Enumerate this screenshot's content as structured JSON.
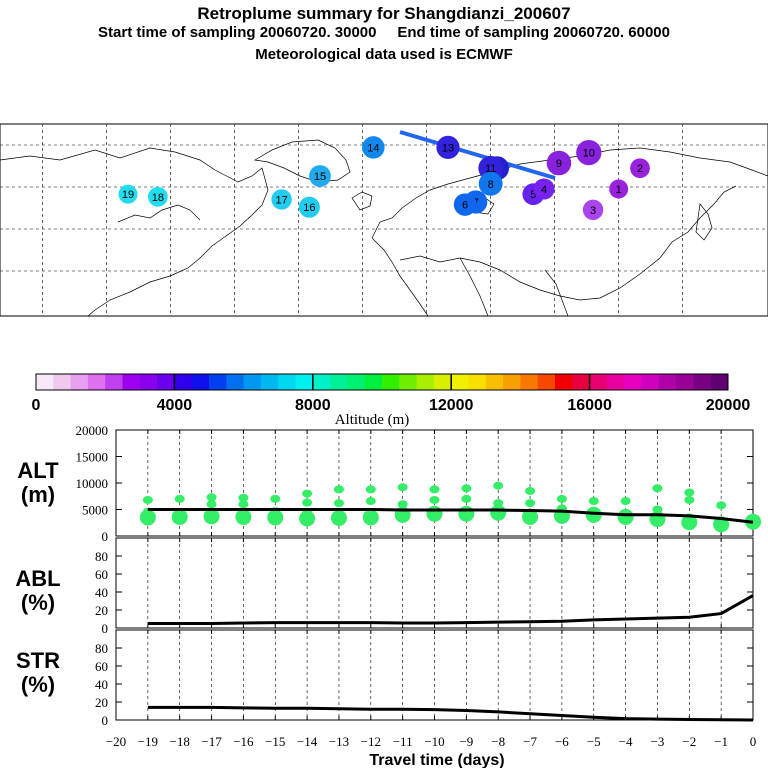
{
  "header": {
    "title": "Retroplume summary for Shangdianzi_200607",
    "start_label": "Start time of sampling 20060720. 30000",
    "end_label": "End time of sampling 20060720. 60000",
    "met_label": "Meteorological data used is ECMWF"
  },
  "map": {
    "plume_labels": [
      {
        "label": "19",
        "days": 19,
        "lon": -110,
        "lat": 48,
        "color": "#22ddee"
      },
      {
        "label": "18",
        "days": 18,
        "lon": -96,
        "lat": 47,
        "color": "#22ddee"
      },
      {
        "label": "17",
        "days": 17,
        "lon": -38,
        "lat": 46,
        "color": "#22ccee"
      },
      {
        "label": "16",
        "days": 16,
        "lon": -25,
        "lat": 43,
        "color": "#22ccee"
      },
      {
        "label": "15",
        "days": 15,
        "lon": -20,
        "lat": 55,
        "color": "#22aaee"
      },
      {
        "label": "14",
        "days": 14,
        "lon": 5,
        "lat": 66,
        "color": "#1188ee"
      },
      {
        "label": "13",
        "days": 13,
        "lon": 40,
        "lat": 66,
        "color": "#3322dd"
      },
      {
        "label": "12",
        "days": 12,
        "lon": 63,
        "lat": 58,
        "color": "#2222cc"
      },
      {
        "label": "11",
        "days": 11,
        "lon": 60,
        "lat": 58,
        "color": "#3322dd"
      },
      {
        "label": "10",
        "days": 10,
        "lon": 106,
        "lat": 64,
        "color": "#8822dd"
      },
      {
        "label": "9",
        "days": 9,
        "lon": 92,
        "lat": 60,
        "color": "#8822dd"
      },
      {
        "label": "8",
        "days": 8,
        "lon": 60,
        "lat": 52,
        "color": "#1177ee"
      },
      {
        "label": "7",
        "days": 7,
        "lon": 53,
        "lat": 45,
        "color": "#1166ee"
      },
      {
        "label": "6",
        "days": 6,
        "lon": 48,
        "lat": 44,
        "color": "#1166ee"
      },
      {
        "label": "5",
        "days": 5,
        "lon": 80,
        "lat": 48,
        "color": "#6622ee"
      },
      {
        "label": "4",
        "days": 4,
        "lon": 85,
        "lat": 50,
        "color": "#7722ee"
      },
      {
        "label": "3",
        "days": 3,
        "lon": 108,
        "lat": 42,
        "color": "#aa44ee"
      },
      {
        "label": "2",
        "days": 2,
        "lon": 130,
        "lat": 58,
        "color": "#9922dd"
      },
      {
        "label": "1",
        "days": 1,
        "lon": 120,
        "lat": 50,
        "color": "#9922dd"
      }
    ]
  },
  "colorbar": {
    "tick_labels": [
      "0",
      "4000",
      "8000",
      "12000",
      "16000",
      "20000"
    ],
    "label": "Altitude (m)",
    "colors": [
      "#f8e8f8",
      "#f0c8f0",
      "#e8a0f0",
      "#e070f0",
      "#c040f0",
      "#a000f0",
      "#8800ee",
      "#6a00ee",
      "#3000ee",
      "#1010ee",
      "#0040f0",
      "#0070f0",
      "#0098f0",
      "#00b8f0",
      "#00d8f0",
      "#00f0f0",
      "#00f0c8",
      "#00f098",
      "#00f070",
      "#00f040",
      "#30f000",
      "#70f000",
      "#a8f000",
      "#d8f000",
      "#f0f000",
      "#f8e000",
      "#f8c000",
      "#f8a000",
      "#f87800",
      "#f84800",
      "#f00000",
      "#e80040",
      "#e80070",
      "#e800a0",
      "#e800c0",
      "#d000c0",
      "#b000a8",
      "#980098",
      "#780080",
      "#600070"
    ]
  },
  "chart_data": [
    {
      "type": "line",
      "panel": "ALT",
      "ylabel": "ALT (m)",
      "ylim": [
        0,
        20000
      ],
      "yticks": [
        0,
        5000,
        10000,
        15000,
        20000
      ],
      "x": [
        -19,
        -18,
        -17,
        -16,
        -15,
        -14,
        -13,
        -12,
        -11,
        -10,
        -9,
        -8,
        -7,
        -6,
        -5,
        -4,
        -3,
        -2,
        -1,
        0
      ],
      "series": [
        {
          "name": "mean altitude",
          "values": [
            5000,
            5000,
            5000,
            5000,
            5000,
            5000,
            5000,
            5000,
            4900,
            4900,
            4900,
            4900,
            4800,
            4700,
            4300,
            4000,
            4000,
            3800,
            3300,
            2600
          ]
        }
      ],
      "clusters": [
        {
          "x": -19,
          "alts": [
            6800,
            4600,
            3500
          ]
        },
        {
          "x": -18,
          "alts": [
            7000,
            4500,
            3600
          ]
        },
        {
          "x": -17,
          "alts": [
            7300,
            6000,
            3700
          ]
        },
        {
          "x": -16,
          "alts": [
            7200,
            6000,
            3600
          ]
        },
        {
          "x": -15,
          "alts": [
            7000,
            4700,
            3500
          ]
        },
        {
          "x": -14,
          "alts": [
            8000,
            6300,
            4400,
            3300
          ]
        },
        {
          "x": -13,
          "alts": [
            8800,
            6200,
            4300,
            3400
          ]
        },
        {
          "x": -12,
          "alts": [
            8800,
            6600,
            4400,
            3500
          ]
        },
        {
          "x": -11,
          "alts": [
            9200,
            6000,
            4000
          ]
        },
        {
          "x": -10,
          "alts": [
            8800,
            6800,
            4200
          ]
        },
        {
          "x": -9,
          "alts": [
            9000,
            7000,
            4200
          ]
        },
        {
          "x": -8,
          "alts": [
            9500,
            6200,
            4400
          ]
        },
        {
          "x": -7,
          "alts": [
            8500,
            6200,
            3600
          ]
        },
        {
          "x": -6,
          "alts": [
            7000,
            5200,
            3800
          ]
        },
        {
          "x": -5,
          "alts": [
            6600,
            4000
          ]
        },
        {
          "x": -4,
          "alts": [
            6600,
            3600
          ]
        },
        {
          "x": -3,
          "alts": [
            9000,
            5000,
            3200
          ]
        },
        {
          "x": -2,
          "alts": [
            8200,
            6800,
            3500,
            2600
          ]
        },
        {
          "x": -1,
          "alts": [
            5800,
            3000,
            2200
          ]
        },
        {
          "x": 0,
          "alts": [
            2700
          ]
        }
      ]
    },
    {
      "type": "line",
      "panel": "ABL",
      "ylabel": "ABL (%)",
      "ylim": [
        0,
        100
      ],
      "yticks": [
        0,
        20,
        40,
        60,
        80
      ],
      "x": [
        -19,
        -18,
        -17,
        -16,
        -15,
        -14,
        -13,
        -12,
        -11,
        -10,
        -9,
        -8,
        -7,
        -6,
        -5,
        -4,
        -3,
        -2,
        -1,
        0
      ],
      "series": [
        {
          "name": "ABL fraction",
          "values": [
            5,
            5,
            5,
            5.5,
            6,
            6,
            6,
            6,
            5.5,
            5.5,
            6,
            6.5,
            7,
            7.5,
            9,
            10,
            11,
            12,
            16,
            36
          ]
        }
      ]
    },
    {
      "type": "line",
      "panel": "STR",
      "ylabel": "STR (%)",
      "ylim": [
        0,
        100
      ],
      "yticks": [
        0,
        20,
        40,
        60,
        80
      ],
      "x": [
        -19,
        -18,
        -17,
        -16,
        -15,
        -14,
        -13,
        -12,
        -11,
        -10,
        -9,
        -8,
        -7,
        -6,
        -5,
        -4,
        -3,
        -2,
        -1,
        0
      ],
      "series": [
        {
          "name": "stratospheric fraction",
          "values": [
            14,
            14,
            14,
            13.5,
            13,
            13,
            12.5,
            12,
            12,
            11.5,
            10.5,
            9,
            7,
            5,
            3,
            1.5,
            1,
            0.5,
            0.3,
            0
          ]
        }
      ]
    }
  ],
  "time_axis": {
    "ticks": [
      -20,
      -19,
      -18,
      -17,
      -16,
      -15,
      -14,
      -13,
      -12,
      -11,
      -10,
      -9,
      -8,
      -7,
      -6,
      -5,
      -4,
      -3,
      -2,
      -1,
      0
    ],
    "tick_labels": [
      "−20",
      "−19",
      "−18",
      "−17",
      "−16",
      "−15",
      "−14",
      "−13",
      "−12",
      "−11",
      "−10",
      "−9",
      "−8",
      "−7",
      "−6",
      "−5",
      "−4",
      "−3",
      "−2",
      "−1",
      "0"
    ],
    "label": "Travel time (days)"
  },
  "panel_labels": {
    "alt": [
      "ALT",
      "(m)"
    ],
    "abl": [
      "ABL",
      "(%)"
    ],
    "str": [
      "STR",
      "(%)"
    ]
  }
}
